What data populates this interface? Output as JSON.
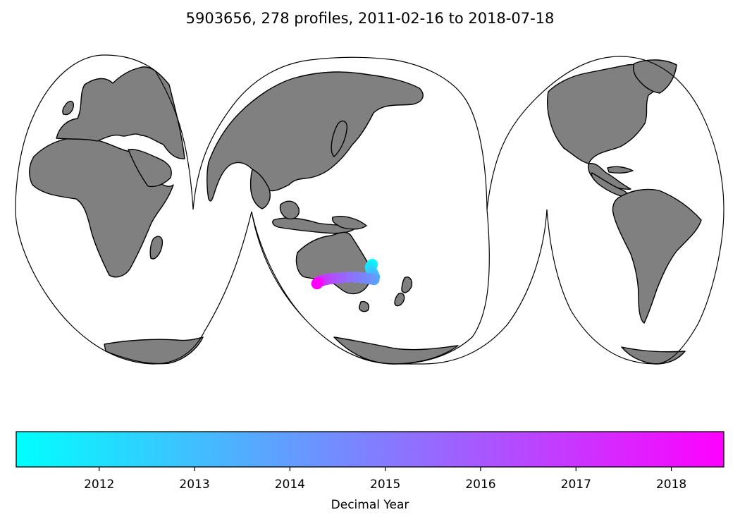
{
  "title": "5903656, 278 profiles, 2011-02-16 to 2018-07-18",
  "map": {
    "projection": "interrupted-goode-homolosine",
    "land_color": "#808080",
    "coast_color": "#000000",
    "ocean_color": "#ffffff"
  },
  "chart_data": {
    "type": "scatter",
    "title": "5903656, 278 profiles, 2011-02-16 to 2018-07-18",
    "profile_count": 278,
    "date_start": "2011-02-16",
    "date_end": "2018-07-18",
    "color_variable": "Decimal Year",
    "track": [
      {
        "lon": 150.2,
        "lat": -36.8,
        "year": 2011.13
      },
      {
        "lon": 150.0,
        "lat": -37.6,
        "year": 2011.4
      },
      {
        "lon": 149.8,
        "lat": -38.6,
        "year": 2011.7
      },
      {
        "lon": 149.9,
        "lat": -39.8,
        "year": 2012.0
      },
      {
        "lon": 150.0,
        "lat": -41.2,
        "year": 2012.3
      },
      {
        "lon": 150.3,
        "lat": -42.6,
        "year": 2012.6
      },
      {
        "lon": 150.5,
        "lat": -43.8,
        "year": 2012.9
      },
      {
        "lon": 150.7,
        "lat": -45.0,
        "year": 2013.2
      },
      {
        "lon": 150.4,
        "lat": -46.0,
        "year": 2013.5
      },
      {
        "lon": 150.6,
        "lat": -46.8,
        "year": 2013.8
      },
      {
        "lon": 149.8,
        "lat": -46.4,
        "year": 2014.1
      },
      {
        "lon": 148.8,
        "lat": -46.0,
        "year": 2014.4
      },
      {
        "lon": 147.6,
        "lat": -45.6,
        "year": 2014.7
      },
      {
        "lon": 146.2,
        "lat": -45.3,
        "year": 2015.0
      },
      {
        "lon": 144.6,
        "lat": -45.2,
        "year": 2015.3
      },
      {
        "lon": 143.0,
        "lat": -45.6,
        "year": 2015.6
      },
      {
        "lon": 141.6,
        "lat": -46.0,
        "year": 2015.9
      },
      {
        "lon": 140.4,
        "lat": -46.3,
        "year": 2016.2
      },
      {
        "lon": 139.4,
        "lat": -46.8,
        "year": 2016.5
      },
      {
        "lon": 138.6,
        "lat": -47.3,
        "year": 2016.8
      },
      {
        "lon": 138.0,
        "lat": -47.8,
        "year": 2017.1
      },
      {
        "lon": 137.6,
        "lat": -48.3,
        "year": 2017.4
      },
      {
        "lon": 137.4,
        "lat": -48.8,
        "year": 2017.7
      },
      {
        "lon": 137.3,
        "lat": -49.2,
        "year": 2018.0
      },
      {
        "lon": 137.2,
        "lat": -49.5,
        "year": 2018.3
      },
      {
        "lon": 137.1,
        "lat": -49.6,
        "year": 2018.55
      }
    ]
  },
  "colorbar": {
    "min": 2011.13,
    "max": 2018.55,
    "ticks": [
      2012,
      2013,
      2014,
      2015,
      2016,
      2017,
      2018
    ],
    "tick_labels": [
      "2012",
      "2013",
      "2014",
      "2015",
      "2016",
      "2017",
      "2018"
    ],
    "label": "Decimal Year",
    "colormap": "cool",
    "color_start": "#00ffff",
    "color_end": "#ff00ff"
  }
}
